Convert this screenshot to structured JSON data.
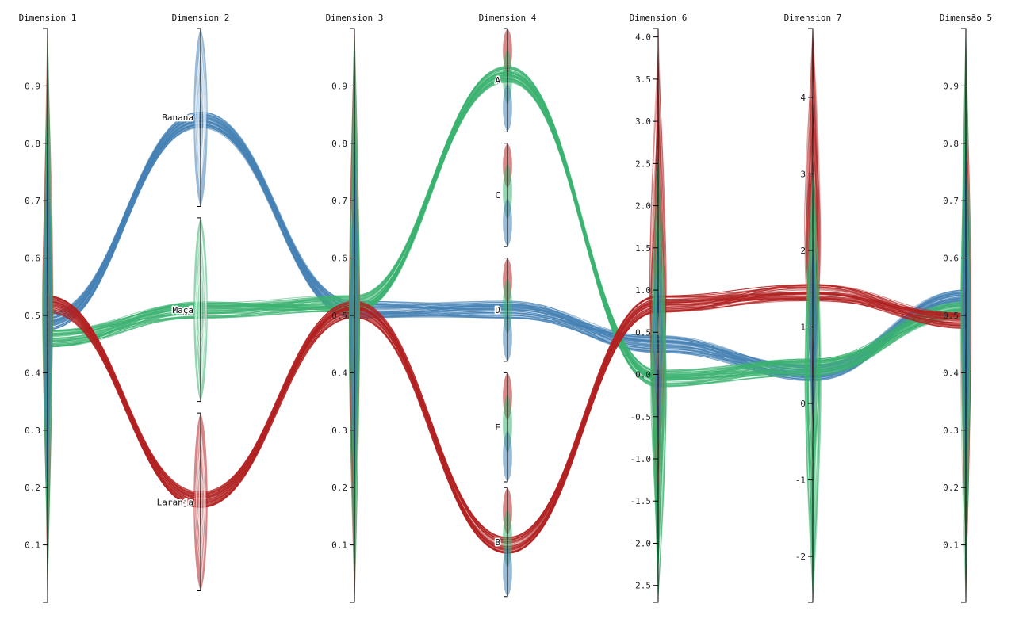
{
  "chart_data": {
    "type": "parallel_sets",
    "colors": {
      "blue": "#4682b4",
      "green": "#3cb371",
      "red": "#b22222"
    },
    "groups": [
      {
        "color_name": "blue"
      },
      {
        "color_name": "green"
      },
      {
        "color_name": "red"
      }
    ],
    "dimensions": [
      {
        "name": "Dimension 1",
        "kind": "numeric",
        "ticks": [
          "0.1",
          "0.2",
          "0.3",
          "0.4",
          "0.5",
          "0.6",
          "0.7",
          "0.8",
          "0.9"
        ],
        "ylim": [
          0,
          1
        ]
      },
      {
        "name": "Dimension 2",
        "kind": "categorical",
        "categories": [
          "Banana",
          "Maçã",
          "Laranja"
        ],
        "category_ranges": [
          [
            0.69,
            1.0
          ],
          [
            0.35,
            0.67
          ],
          [
            0.02,
            0.33
          ]
        ]
      },
      {
        "name": "Dimension 3",
        "kind": "numeric",
        "ticks": [
          "0.1",
          "0.2",
          "0.3",
          "0.4",
          "0.5",
          "0.6",
          "0.7",
          "0.8",
          "0.9"
        ],
        "ylim": [
          0,
          1
        ]
      },
      {
        "name": "Dimension 4",
        "kind": "categorical",
        "categories": [
          "A",
          "C",
          "D",
          "E",
          "B"
        ],
        "category_ranges": [
          [
            0.82,
            1.0
          ],
          [
            0.62,
            0.8
          ],
          [
            0.42,
            0.6
          ],
          [
            0.21,
            0.4
          ],
          [
            0.01,
            0.2
          ]
        ]
      },
      {
        "name": "Dimension 6",
        "kind": "numeric",
        "ticks": [
          "-2.5",
          "-2.0",
          "-1.5",
          "-1.0",
          "-0.5",
          "0.0",
          "0.5",
          "1.0",
          "1.5",
          "2.0",
          "2.5",
          "3.0",
          "3.5",
          "4.0"
        ],
        "ylim": [
          -2.7,
          4.1
        ]
      },
      {
        "name": "Dimension 7",
        "kind": "numeric",
        "ticks": [
          "-2",
          "-1",
          "0",
          "1",
          "2",
          "3",
          "4"
        ],
        "ylim": [
          -2.6,
          4.9
        ]
      },
      {
        "name": "Dimensão 5",
        "kind": "numeric",
        "ticks": [
          "0.1",
          "0.2",
          "0.3",
          "0.4",
          "0.5",
          "0.6",
          "0.7",
          "0.8",
          "0.9"
        ],
        "ylim": [
          0,
          1
        ]
      }
    ],
    "group_paths": [
      {
        "group": 0,
        "values": [
          0.49,
          0.84,
          0.51,
          0.51,
          0.45,
          0.4,
          0.53
        ]
      },
      {
        "group": 1,
        "values": [
          0.46,
          0.51,
          0.52,
          0.92,
          0.39,
          0.41,
          0.51
        ]
      },
      {
        "group": 2,
        "values": [
          0.52,
          0.18,
          0.51,
          0.1,
          0.52,
          0.54,
          0.49
        ]
      }
    ],
    "legend": "none",
    "grid": false
  }
}
